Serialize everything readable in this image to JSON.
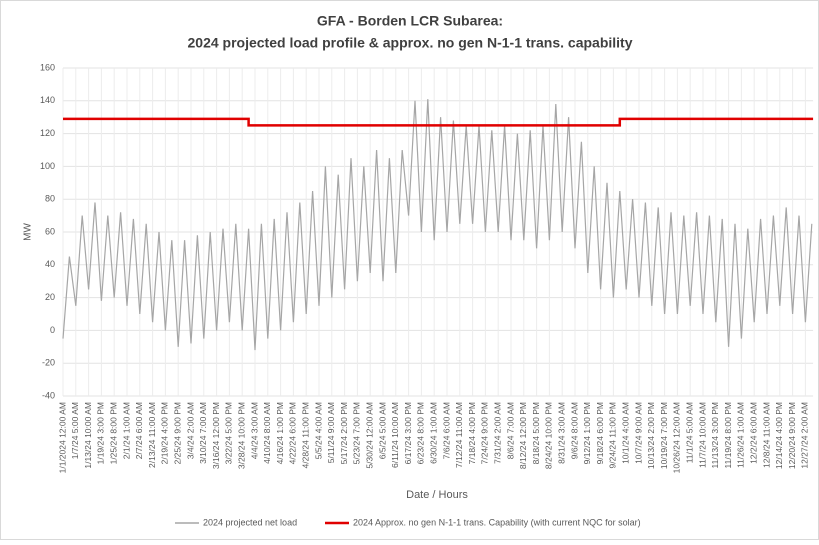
{
  "chart_data": {
    "type": "line",
    "title": "GFA - Borden LCR Subarea:",
    "subtitle": "2024 projected load profile & approx. no gen N-1-1 trans. capability",
    "x_label": "Date / Hours",
    "y_label": "MW",
    "categories": [
      "1/1/2024 12:00 AM",
      "1/7/24 5:00 AM",
      "1/13/24 10:00 AM",
      "1/19/24 3:00 PM",
      "1/25/24 8:00 PM",
      "2/1/24 1:00 AM",
      "2/7/24 6:00 AM",
      "2/13/24 11:00 AM",
      "2/19/24 4:00 PM",
      "2/25/24 9:00 PM",
      "3/4/24 2:00 AM",
      "3/10/24 7:00 AM",
      "3/16/24 12:00 PM",
      "3/22/24 5:00 PM",
      "3/28/24 10:00 PM",
      "4/4/24 3:00 AM",
      "4/10/24 8:00 AM",
      "4/16/24 1:00 PM",
      "4/22/24 6:00 PM",
      "4/28/24 11:00 PM",
      "5/5/24 4:00 AM",
      "5/11/24 9:00 AM",
      "5/17/24 2:00 PM",
      "5/23/24 7:00 PM",
      "5/30/24 12:00 AM",
      "6/5/24 5:00 AM",
      "6/11/24 10:00 AM",
      "6/17/24 3:00 PM",
      "6/23/24 8:00 PM",
      "6/30/24 1:00 AM",
      "7/6/24 6:00 AM",
      "7/12/24 11:00 AM",
      "7/18/24 4:00 PM",
      "7/24/24 9:00 PM",
      "7/31/24 2:00 AM",
      "8/6/24 7:00 AM",
      "8/12/24 12:00 PM",
      "8/18/24 5:00 PM",
      "8/24/24 10:00 PM",
      "8/31/24 3:00 AM",
      "9/6/24 8:00 AM",
      "9/12/24 1:00 PM",
      "9/18/24 6:00 PM",
      "9/24/24 11:00 PM",
      "10/1/24 4:00 AM",
      "10/7/24 9:00 AM",
      "10/13/24 2:00 PM",
      "10/19/24 7:00 PM",
      "10/26/24 12:00 AM",
      "11/1/24 5:00 AM",
      "11/7/24 10:00 AM",
      "11/13/24 3:00 PM",
      "11/19/24 8:00 PM",
      "11/26/24 1:00 AM",
      "12/2/24 6:00 AM",
      "12/8/24 11:00 AM",
      "12/14/24 4:00 PM",
      "12/20/24 9:00 PM",
      "12/27/24 2:00 AM"
    ],
    "series": [
      {
        "name": "2024 projected net load",
        "color": "#a6a6a6",
        "style": "range",
        "lows": [
          -5,
          15,
          25,
          18,
          20,
          15,
          10,
          5,
          0,
          -10,
          -8,
          -5,
          0,
          5,
          0,
          -12,
          -5,
          0,
          5,
          10,
          15,
          20,
          25,
          30,
          35,
          30,
          35,
          70,
          60,
          55,
          60,
          65,
          65,
          60,
          60,
          55,
          55,
          50,
          55,
          60,
          50,
          35,
          25,
          20,
          25,
          20,
          15,
          10,
          10,
          15,
          10,
          5,
          -10,
          -5,
          5,
          10,
          15,
          10,
          5
        ],
        "values": [
          45,
          70,
          78,
          70,
          72,
          68,
          65,
          60,
          55,
          55,
          58,
          60,
          62,
          65,
          62,
          65,
          68,
          72,
          78,
          85,
          100,
          95,
          105,
          100,
          110,
          105,
          110,
          140,
          141,
          130,
          128,
          125,
          125,
          122,
          125,
          120,
          122,
          125,
          138,
          130,
          115,
          100,
          90,
          85,
          80,
          78,
          75,
          72,
          70,
          72,
          70,
          68,
          65,
          62,
          68,
          70,
          75,
          70,
          65
        ]
      },
      {
        "name": "2024 Approx. no gen N-1-1 trans. Capability (with current NQC for solar)",
        "color": "#e00000",
        "style": "step",
        "values": [
          129,
          129,
          129,
          129,
          129,
          129,
          129,
          129,
          129,
          129,
          129,
          129,
          129,
          129,
          129,
          125,
          125,
          125,
          125,
          125,
          125,
          125,
          125,
          125,
          125,
          125,
          125,
          125,
          125,
          125,
          125,
          125,
          125,
          125,
          125,
          125,
          125,
          125,
          125,
          125,
          125,
          125,
          125,
          125,
          129,
          129,
          129,
          129,
          129,
          129,
          129,
          129,
          129,
          129,
          129,
          129,
          129,
          129,
          129
        ]
      }
    ],
    "ylim": [
      -40,
      160
    ],
    "yticks": [
      -40,
      -20,
      0,
      20,
      40,
      60,
      80,
      100,
      120,
      140,
      160
    ],
    "grid": true,
    "legend": "bottom"
  }
}
